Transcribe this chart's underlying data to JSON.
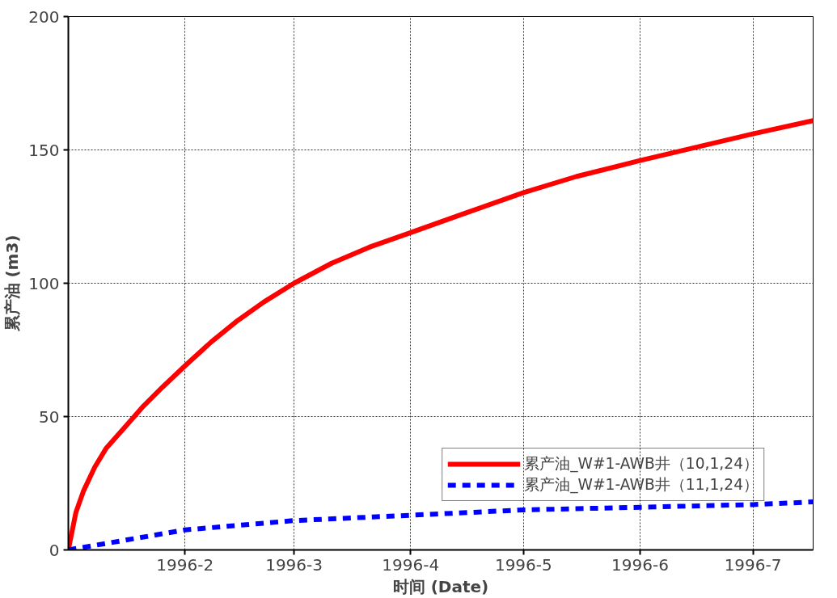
{
  "chart_data": {
    "type": "line",
    "xlabel": "时间 (Date)",
    "ylabel": "累产油 (m3)",
    "x": [
      "1996-01-01",
      "1996-01-03",
      "1996-01-05",
      "1996-01-08",
      "1996-01-11",
      "1996-01-16",
      "1996-01-21",
      "1996-01-26",
      "1996-02-01",
      "1996-02-08",
      "1996-02-15",
      "1996-02-22",
      "1996-03-01",
      "1996-03-11",
      "1996-03-21",
      "1996-04-01",
      "1996-04-15",
      "1996-05-01",
      "1996-05-15",
      "1996-06-01",
      "1996-06-16",
      "1996-07-01",
      "1996-07-17"
    ],
    "series": [
      {
        "name": "累产油_W#1-AWB井（10,1,24）",
        "color": "#ff0000",
        "line_style": "solid",
        "values": [
          0,
          14,
          22,
          31,
          38,
          46,
          54,
          61,
          69,
          78,
          86,
          93,
          100,
          107.5,
          113.5,
          119,
          126,
          134,
          140,
          146,
          151,
          156,
          161
        ]
      },
      {
        "name": "累产油_W#1-AWB井（11,1,24）",
        "color": "#0000ff",
        "line_style": "dashed",
        "x": [
          "1996-01-01",
          "1996-02-01",
          "1996-03-01",
          "1996-04-01",
          "1996-05-01",
          "1996-06-01",
          "1996-07-01",
          "1996-07-17"
        ],
        "values": [
          0,
          7.5,
          11,
          13,
          15,
          16,
          17,
          18
        ]
      }
    ],
    "xlim": [
      "1996-01-01",
      "1996-07-17"
    ],
    "xticks": [
      {
        "value": "1996-02-01",
        "label": "1996-2"
      },
      {
        "value": "1996-03-01",
        "label": "1996-3"
      },
      {
        "value": "1996-04-01",
        "label": "1996-4"
      },
      {
        "value": "1996-05-01",
        "label": "1996-5"
      },
      {
        "value": "1996-06-01",
        "label": "1996-6"
      },
      {
        "value": "1996-07-01",
        "label": "1996-7"
      }
    ],
    "ylim": [
      0,
      200
    ],
    "yticks": [
      0,
      50,
      100,
      150,
      200
    ],
    "grid": true,
    "legend": "bottom right",
    "marker": "none"
  }
}
